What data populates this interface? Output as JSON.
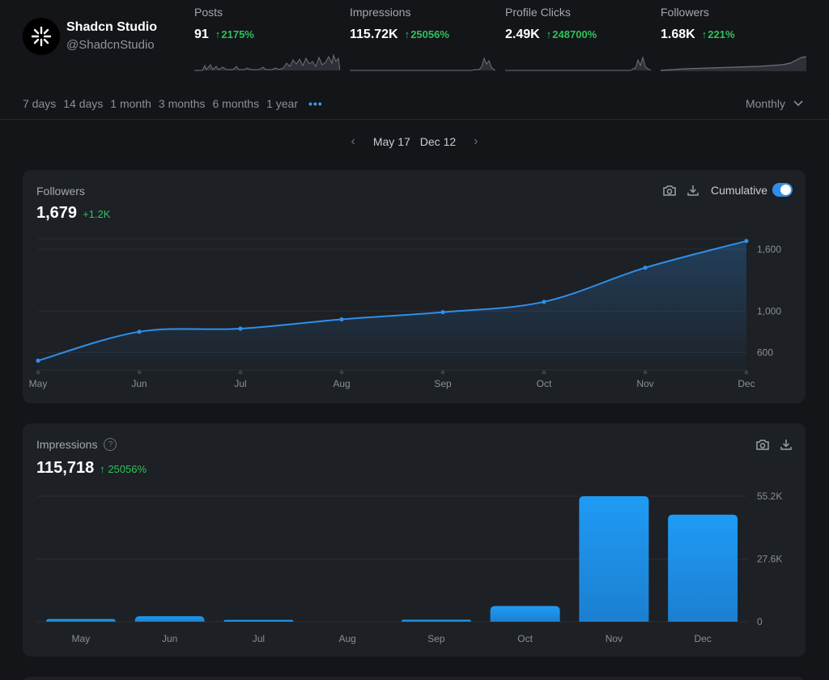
{
  "profile": {
    "name": "Shadcn Studio",
    "handle": "@ShadcnStudio"
  },
  "stats": [
    {
      "label": "Posts",
      "value": "91",
      "delta": "2175%"
    },
    {
      "label": "Impressions",
      "value": "115.72K",
      "delta": "25056%"
    },
    {
      "label": "Profile Clicks",
      "value": "2.49K",
      "delta": "248700%"
    },
    {
      "label": "Followers",
      "value": "1.68K",
      "delta": "221%"
    }
  ],
  "ranges": [
    "7 days",
    "14 days",
    "1 month",
    "3 months",
    "6 months",
    "1 year"
  ],
  "more_label": "•••",
  "granularity": "Monthly",
  "date_range": {
    "start": "May 17",
    "end": "Dec 12"
  },
  "colors": {
    "accent": "#2f8fe8",
    "positive": "#2fc25b",
    "background": "#131519",
    "card": "#1d2025"
  },
  "followers_card": {
    "title": "Followers",
    "value": "1,679",
    "delta": "+1.2K",
    "toggle_label": "Cumulative",
    "toggle_on": true
  },
  "impressions_card": {
    "title": "Impressions",
    "help_icon": "?",
    "value": "115,718",
    "delta": "25056%"
  },
  "chart_data": [
    {
      "type": "area",
      "categories": [
        "May",
        "Jun",
        "Jul",
        "Aug",
        "Sep",
        "Oct",
        "Nov",
        "Dec"
      ],
      "series": [
        {
          "values": [
            520,
            800,
            830,
            920,
            990,
            1090,
            1420,
            1679
          ]
        }
      ],
      "ytick_labels": [
        "600",
        "1,000",
        "1,600"
      ],
      "ylim": [
        430,
        1700
      ],
      "grid": true
    },
    {
      "type": "bar",
      "categories": [
        "May",
        "Jun",
        "Jul",
        "Aug",
        "Sep",
        "Oct",
        "Nov",
        "Dec"
      ],
      "values": [
        1200,
        2400,
        800,
        0,
        900,
        6900,
        55200,
        47100
      ],
      "ytick_labels": [
        "0",
        "27.6K",
        "55.2K"
      ],
      "ylim": [
        0,
        55200
      ],
      "grid": true
    }
  ]
}
